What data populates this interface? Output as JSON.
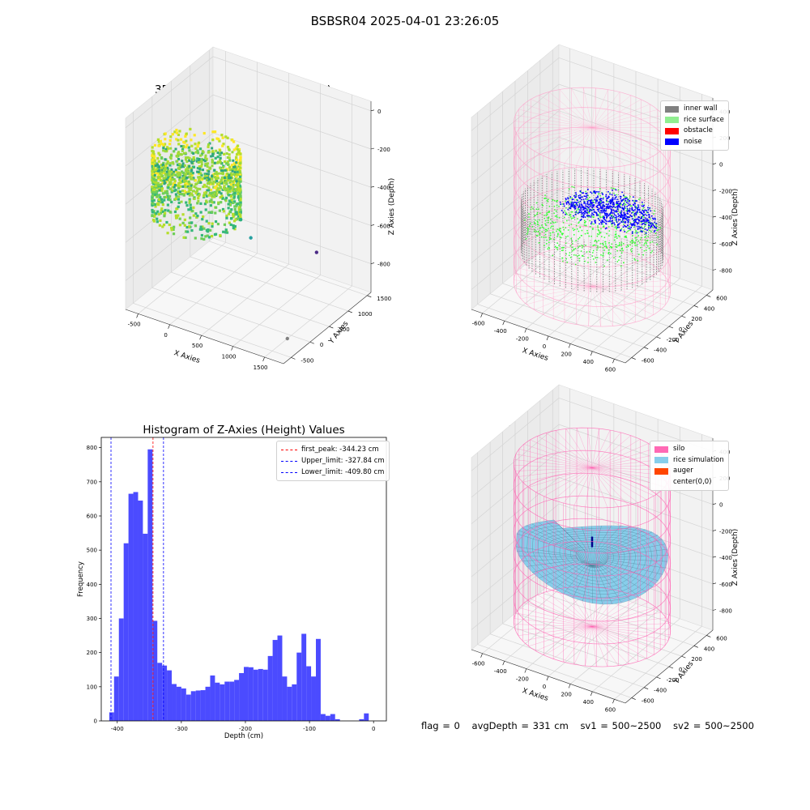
{
  "suptitle": "BSBSR04 2025-04-01 23:26:05",
  "status": {
    "flag": "flag = 0",
    "avg_depth": "avgDepth = 331 cm",
    "sv1": "sv1 = 500~2500",
    "sv2": "sv2 = 500~2500"
  },
  "colors": {
    "inner_wall": "#808080",
    "rice_surface": "#90ee90",
    "obstacle": "#ff0000",
    "noise": "#0000ff",
    "silo": "#ff69b4",
    "rice_simulation": "#87ceeb",
    "auger": "#ff4500",
    "hist_bars": "#4b4bff",
    "first_peak_line": "#ff0000",
    "limit_lines": "#0000ff"
  },
  "chart_data": [
    {
      "type": "scatter",
      "subtype": "3d",
      "title": "3D Plot of Silo Interior(row data)",
      "xlabel": "X Axies",
      "ylabel": "Y Axies",
      "zlabel": "Z Axies (Depth)",
      "x_ticks": [
        "-500",
        "0",
        "500",
        "1000",
        "1500"
      ],
      "y_ticks": [
        "-500",
        "0",
        "500",
        "1000",
        "1500"
      ],
      "z_ticks": [
        "0",
        "-200",
        "-400",
        "-600",
        "-800"
      ],
      "xlim": [
        -700,
        1800
      ],
      "ylim": [
        -700,
        1600
      ],
      "zlim": [
        -950,
        50
      ],
      "colormap": "viridis",
      "points": [
        {
          "x": 1500,
          "y": -100,
          "z": -950
        },
        {
          "x": 1300,
          "y": 1000,
          "z": -700
        },
        {
          "x": 500,
          "y": 600,
          "z": -650
        },
        {
          "x": 400,
          "y": 500,
          "z": -550
        }
      ],
      "cylinder_x": [
        -600,
        600
      ],
      "cylinder_y": [
        -600,
        600
      ],
      "cylinder_z": [
        -500,
        -150
      ]
    },
    {
      "type": "scatter",
      "subtype": "3d",
      "title": "3D classify of Silo Interior",
      "xlabel": "X Axies",
      "ylabel": "Y Axies",
      "zlabel": "Z Axies (Depth)",
      "x_ticks": [
        "-600",
        "-400",
        "-200",
        "0",
        "200",
        "400",
        "600"
      ],
      "y_ticks": [
        "-600",
        "-400",
        "-200",
        "0",
        "200",
        "400",
        "600"
      ],
      "z_ticks": [
        "400",
        "200",
        "0",
        "-200",
        "-400",
        "-600",
        "-800"
      ],
      "xlim": [
        -700,
        700
      ],
      "ylim": [
        -700,
        700
      ],
      "zlim": [
        -950,
        500
      ],
      "legend": [
        "inner wall",
        "rice surface",
        "obstacle",
        "noise"
      ],
      "legend_position": "upper right"
    },
    {
      "type": "bar",
      "subtype": "histogram",
      "title": "Histogram of Z-Axies (Height) Values",
      "xlabel": "Depth (cm)",
      "ylabel": "Frequency",
      "x_ticks": [
        "-400",
        "-300",
        "-200",
        "-100",
        "0"
      ],
      "y_ticks": [
        "0",
        "100",
        "200",
        "300",
        "400",
        "500",
        "600",
        "700",
        "800"
      ],
      "xlim": [
        -425,
        20
      ],
      "ylim": [
        0,
        830
      ],
      "bin_width": 7.5,
      "bins_start": [
        -412.5,
        -405,
        -397.5,
        -390,
        -382.5,
        -375,
        -367.5,
        -360,
        -352.5,
        -345,
        -337.5,
        -330,
        -322.5,
        -315,
        -307.5,
        -300,
        -292.5,
        -285,
        -277.5,
        -270,
        -262.5,
        -255,
        -247.5,
        -240,
        -232.5,
        -225,
        -217.5,
        -210,
        -202.5,
        -195,
        -187.5,
        -180,
        -172.5,
        -165,
        -157.5,
        -150,
        -142.5,
        -135,
        -127.5,
        -120,
        -112.5,
        -105,
        -97.5,
        -90,
        -82.5,
        -75,
        -67.5,
        -60,
        -52.5,
        -45,
        -37.5,
        -30,
        -22.5,
        -15,
        -7.5
      ],
      "values": [
        25,
        130,
        300,
        520,
        665,
        670,
        645,
        548,
        795,
        293,
        170,
        162,
        148,
        108,
        100,
        95,
        77,
        87,
        89,
        90,
        100,
        133,
        112,
        107,
        115,
        115,
        120,
        140,
        158,
        157,
        150,
        152,
        150,
        190,
        237,
        250,
        130,
        100,
        107,
        200,
        255,
        160,
        130,
        240,
        20,
        15,
        20,
        5,
        0,
        0,
        0,
        0,
        5,
        22,
        0
      ],
      "lines": [
        {
          "name": "first_peak: -344.23 cm",
          "x": -344.23,
          "color": "#ff0000"
        },
        {
          "name": "Upper_limit: -327.84 cm",
          "x": -327.84,
          "color": "#0000ff"
        },
        {
          "name": "Lower_limit: -409.80 cm",
          "x": -409.8,
          "color": "#0000ff"
        }
      ],
      "legend_position": "upper right"
    },
    {
      "type": "surface",
      "subtype": "3d",
      "title": "3D simulation of Silo Interior",
      "xlabel": "X Axies",
      "ylabel": "Y Axies",
      "zlabel": "Z Axies (Depth)",
      "x_ticks": [
        "-600",
        "-400",
        "-200",
        "0",
        "200",
        "400",
        "600"
      ],
      "y_ticks": [
        "-600",
        "-400",
        "-200",
        "0",
        "200",
        "400",
        "600"
      ],
      "z_ticks": [
        "400",
        "200",
        "0",
        "-200",
        "-400",
        "-600",
        "-800"
      ],
      "xlim": [
        -700,
        700
      ],
      "ylim": [
        -700,
        700
      ],
      "zlim": [
        -950,
        500
      ],
      "legend": [
        "silo",
        "rice simulation",
        "auger",
        "center(0,0)"
      ],
      "legend_position": "upper right"
    }
  ]
}
